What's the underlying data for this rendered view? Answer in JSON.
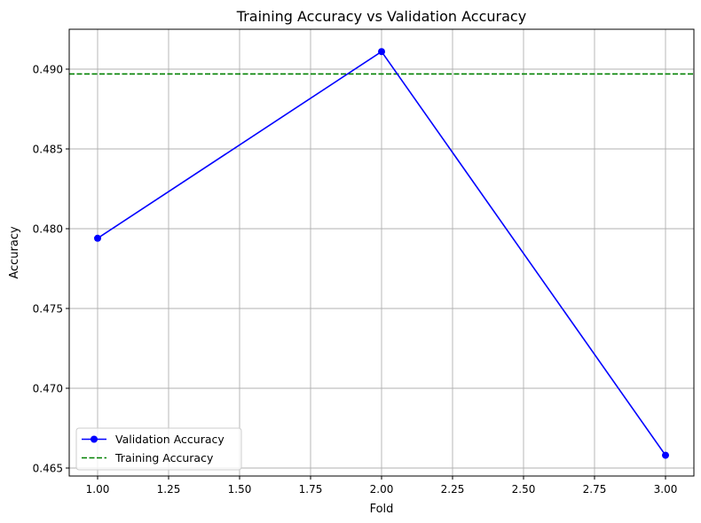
{
  "chart_data": {
    "type": "line",
    "title": "Training Accuracy vs Validation Accuracy",
    "xlabel": "Fold",
    "ylabel": "Accuracy",
    "xlim": [
      0.9,
      3.1
    ],
    "ylim": [
      0.4645,
      0.4925
    ],
    "x_ticks": [
      1.0,
      1.25,
      1.5,
      1.75,
      2.0,
      2.25,
      2.5,
      2.75,
      3.0
    ],
    "x_tick_labels": [
      "1.00",
      "1.25",
      "1.50",
      "1.75",
      "2.00",
      "2.25",
      "2.50",
      "2.75",
      "3.00"
    ],
    "y_ticks": [
      0.465,
      0.47,
      0.475,
      0.48,
      0.485,
      0.49
    ],
    "y_tick_labels": [
      "0.465",
      "0.470",
      "0.475",
      "0.480",
      "0.485",
      "0.490"
    ],
    "grid": true,
    "legend_position": "lower-left",
    "series": [
      {
        "name": "Validation Accuracy",
        "style": "solid-line-with-circle-markers",
        "color": "#0000ff",
        "x": [
          1,
          2,
          3
        ],
        "y": [
          0.4794,
          0.4911,
          0.4658
        ]
      },
      {
        "name": "Training Accuracy",
        "style": "dashed-horizontal-line",
        "color": "#008000",
        "y": 0.4897
      }
    ]
  }
}
